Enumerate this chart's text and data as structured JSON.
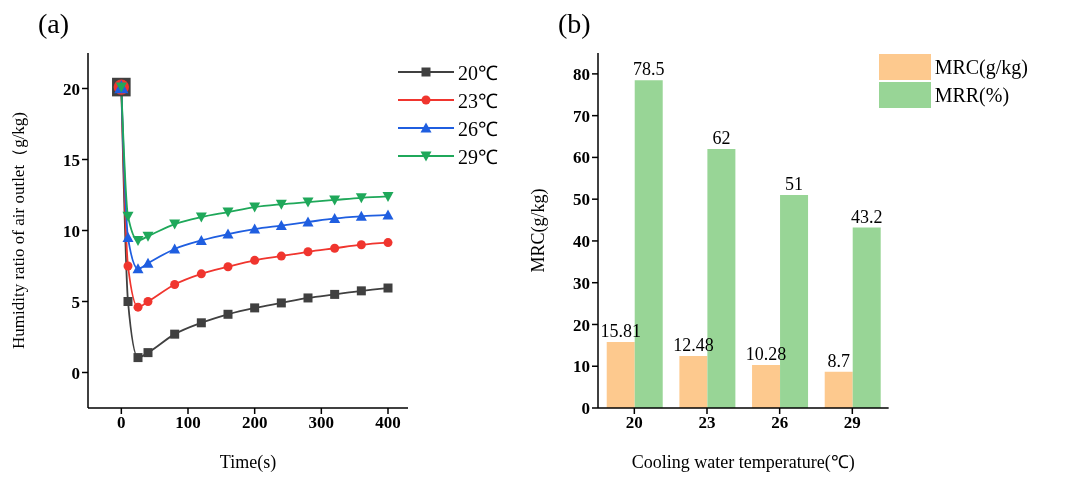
{
  "chart_data": [
    {
      "type": "line",
      "title": "(a)",
      "xlabel": "Time(s)",
      "ylabel": "Humidity ratio of air outlet（g/kg)",
      "xlim": [
        -50,
        430
      ],
      "xticks": [
        0,
        100,
        200,
        300,
        400
      ],
      "ylim": [
        -2.5,
        22.5
      ],
      "yticks": [
        0,
        5,
        10,
        15,
        20
      ],
      "grid": false,
      "legend": "top right",
      "line_style": "solid",
      "x": [
        0,
        10,
        25,
        40,
        80,
        120,
        160,
        200,
        240,
        280,
        320,
        360,
        400
      ],
      "series": [
        {
          "name": "20℃",
          "color": "#404040",
          "marker": "square",
          "values": [
            20.1,
            5,
            1.05,
            1.4,
            2.7,
            3.5,
            4.1,
            4.55,
            4.9,
            5.25,
            5.5,
            5.75,
            5.95
          ]
        },
        {
          "name": "23℃",
          "color": "#f0352e",
          "marker": "circle",
          "values": [
            20.1,
            7.5,
            4.6,
            5.0,
            6.2,
            6.95,
            7.45,
            7.9,
            8.2,
            8.5,
            8.75,
            9.0,
            9.15
          ]
        },
        {
          "name": "26℃",
          "color": "#1f5ee0",
          "marker": "triangle",
          "values": [
            20.1,
            9.5,
            7.3,
            7.7,
            8.7,
            9.3,
            9.75,
            10.1,
            10.35,
            10.6,
            10.85,
            11.0,
            11.1
          ]
        },
        {
          "name": "29℃",
          "color": "#1fa85a",
          "marker": "triangle-down",
          "values": [
            20.1,
            11,
            9.3,
            9.6,
            10.45,
            10.95,
            11.3,
            11.65,
            11.85,
            12.0,
            12.15,
            12.3,
            12.4
          ]
        }
      ]
    },
    {
      "type": "bar",
      "title": "(b)",
      "xlabel": "Cooling water temperature(℃)",
      "ylabel": "MRC(g/kg)",
      "categories": [
        "20",
        "23",
        "26",
        "29"
      ],
      "ylim": [
        0,
        85
      ],
      "yticks": [
        0,
        10,
        20,
        30,
        40,
        50,
        60,
        70,
        80
      ],
      "grid": false,
      "legend": "top right",
      "data_labels": true,
      "series": [
        {
          "name": "MRC(g/kg)",
          "color": "#fdc98e",
          "values": [
            15.81,
            12.48,
            10.28,
            8.7
          ]
        },
        {
          "name": "MRR(%)",
          "color": "#98d596",
          "values": [
            78.5,
            62,
            51,
            43.2
          ]
        }
      ]
    }
  ]
}
